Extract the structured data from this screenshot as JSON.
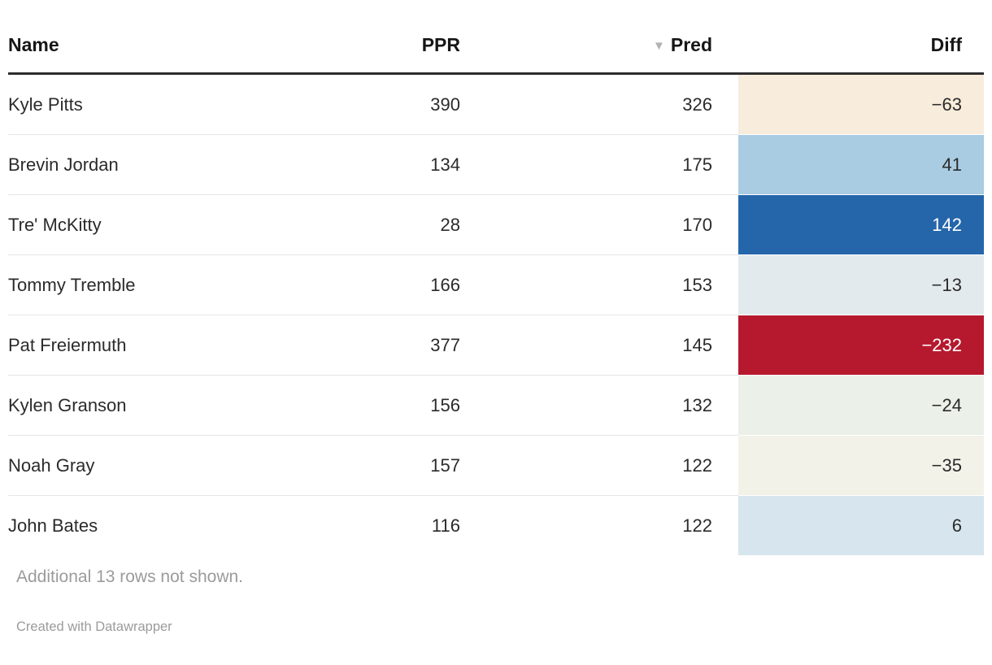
{
  "table": {
    "sort_indicator": "▼",
    "columns": [
      {
        "key": "name",
        "label": "Name",
        "align": "left",
        "sorted": false
      },
      {
        "key": "ppr",
        "label": "PPR",
        "align": "right",
        "sorted": false
      },
      {
        "key": "pred",
        "label": "Pred",
        "align": "right",
        "sorted": true
      },
      {
        "key": "diff",
        "label": "Diff",
        "align": "right",
        "sorted": false
      }
    ],
    "rows": [
      {
        "name": "Kyle Pitts",
        "ppr": "390",
        "pred": "326",
        "diff": "−63",
        "diff_bg": "#f8ecdc",
        "diff_fg": "#2b2b2b"
      },
      {
        "name": "Brevin Jordan",
        "ppr": "134",
        "pred": "175",
        "diff": "41",
        "diff_bg": "#a9cce2",
        "diff_fg": "#2b2b2b"
      },
      {
        "name": "Tre' McKitty",
        "ppr": "28",
        "pred": "170",
        "diff": "142",
        "diff_bg": "#2566ab",
        "diff_fg": "#ffffff"
      },
      {
        "name": "Tommy Tremble",
        "ppr": "166",
        "pred": "153",
        "diff": "−13",
        "diff_bg": "#e3eaed",
        "diff_fg": "#2b2b2b"
      },
      {
        "name": "Pat Freiermuth",
        "ppr": "377",
        "pred": "145",
        "diff": "−232",
        "diff_bg": "#b6192e",
        "diff_fg": "#ffffff"
      },
      {
        "name": "Kylen Granson",
        "ppr": "156",
        "pred": "132",
        "diff": "−24",
        "diff_bg": "#ebf0e8",
        "diff_fg": "#2b2b2b"
      },
      {
        "name": "Noah Gray",
        "ppr": "157",
        "pred": "122",
        "diff": "−35",
        "diff_bg": "#f2f2e8",
        "diff_fg": "#2b2b2b"
      },
      {
        "name": "John Bates",
        "ppr": "116",
        "pred": "122",
        "diff": "6",
        "diff_bg": "#d7e5ee",
        "diff_fg": "#2b2b2b"
      }
    ]
  },
  "footer": {
    "note": "Additional 13 rows not shown.",
    "attribution": "Created with Datawrapper"
  },
  "chart_data": {
    "type": "table",
    "columns": [
      "Name",
      "PPR",
      "Pred",
      "Diff"
    ],
    "sorted_by": {
      "column": "Pred",
      "direction": "desc"
    },
    "rows": [
      [
        "Kyle Pitts",
        390,
        326,
        -63
      ],
      [
        "Brevin Jordan",
        134,
        175,
        41
      ],
      [
        "Tre' McKitty",
        28,
        170,
        142
      ],
      [
        "Tommy Tremble",
        166,
        153,
        -13
      ],
      [
        "Pat Freiermuth",
        377,
        145,
        -232
      ],
      [
        "Kylen Granson",
        156,
        132,
        -24
      ],
      [
        "Noah Gray",
        157,
        122,
        -35
      ],
      [
        "John Bates",
        116,
        122,
        6
      ]
    ],
    "diff_column_heatmap": true,
    "note": "Additional 13 rows not shown.",
    "heatmap_colors": {
      "strong_negative": "#b6192e",
      "mild_negative": "#f8ecdc",
      "neutral": "#f2f2e8",
      "mild_positive": "#a9cce2",
      "strong_positive": "#2566ab"
    }
  }
}
